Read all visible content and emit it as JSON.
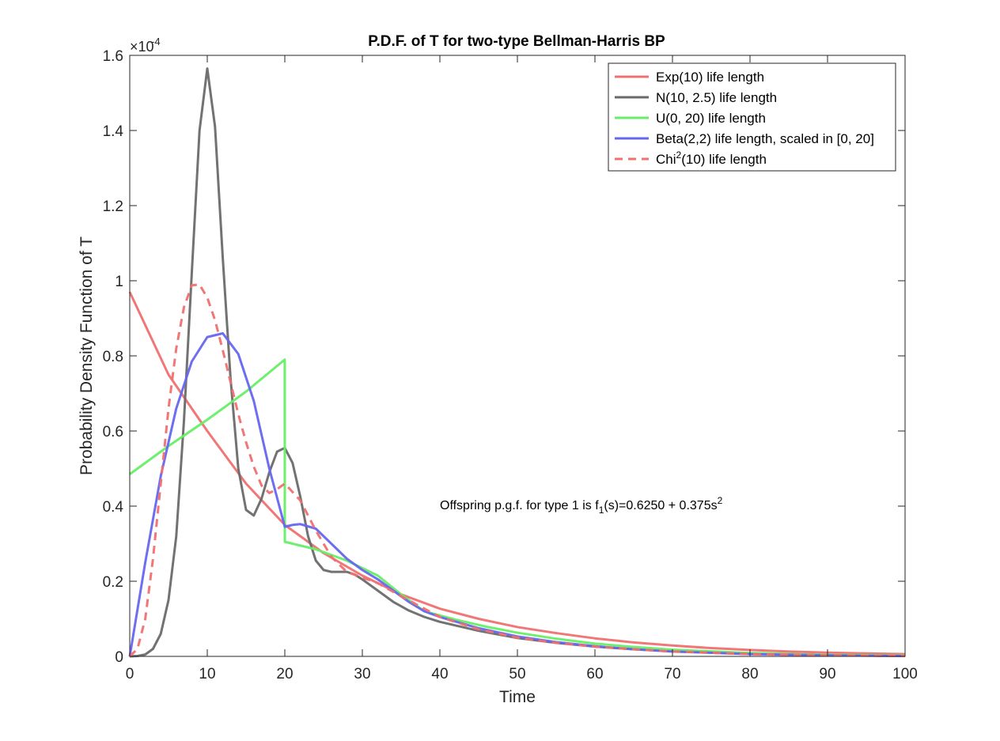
{
  "chart_data": {
    "type": "line",
    "title": "P.D.F. of T for two-type Bellman-Harris BP",
    "xlabel": "Time",
    "ylabel": "Probability Density Function of T",
    "xlim": [
      0,
      100
    ],
    "ylim": [
      0,
      0.00016
    ],
    "x_ticks": [
      "0",
      "10",
      "20",
      "30",
      "40",
      "50",
      "60",
      "70",
      "80",
      "90",
      "100"
    ],
    "y_ticks": [
      "0",
      "0.2",
      "0.4",
      "0.6",
      "0.8",
      "1",
      "1.2",
      "1.4",
      "1.6"
    ],
    "y_exponent": {
      "base": "×10",
      "power": "-4"
    },
    "grid": false,
    "legend_position": "top-right",
    "annotation": {
      "prefix": "Offspring p.g.f. for type 1 is f",
      "subscript": "1",
      "middle": "(s)=0.6250 + 0.375s",
      "superscript": "2"
    },
    "series": [
      {
        "name": "Exp(10) life length",
        "legend_parts": [
          "Exp(10) life length"
        ],
        "color": "#f07070",
        "dash": false,
        "x": [
          0,
          5,
          10,
          15,
          20,
          25,
          30,
          35,
          40,
          45,
          50,
          55,
          60,
          65,
          70,
          75,
          80,
          85,
          90,
          95,
          100
        ],
        "y": [
          9.7e-05,
          7.5e-05,
          6e-05,
          4.6e-05,
          3.5e-05,
          2.75e-05,
          2.15e-05,
          1.65e-05,
          1.27e-05,
          1e-05,
          7.8e-06,
          6.2e-06,
          4.8e-06,
          3.7e-06,
          2.9e-06,
          2.2e-06,
          1.7e-06,
          1.3e-06,
          1e-06,
          8e-07,
          6e-07
        ]
      },
      {
        "name": "N(10, 2.5) life length",
        "legend_parts": [
          "N(10, 2.5) life length"
        ],
        "color": "#6a6a6a",
        "dash": false,
        "x": [
          0,
          1,
          2,
          3,
          4,
          5,
          6,
          7,
          8,
          9,
          10,
          11,
          12,
          13,
          14,
          15,
          16,
          17,
          18,
          19,
          20,
          21,
          22,
          23,
          24,
          25,
          26,
          27,
          28,
          29,
          30,
          32,
          34,
          36,
          38,
          40,
          45,
          50,
          55,
          60,
          65,
          70,
          80,
          90,
          100
        ],
        "y": [
          0,
          1e-07,
          5e-07,
          2e-06,
          6e-06,
          1.5e-05,
          3.2e-05,
          6.3e-05,
          0.000102,
          0.00014,
          0.0001565,
          0.000141,
          0.000106,
          7.4e-05,
          5e-05,
          3.9e-05,
          3.75e-05,
          4.2e-05,
          4.9e-05,
          5.45e-05,
          5.55e-05,
          5.15e-05,
          4.25e-05,
          3.2e-05,
          2.55e-05,
          2.3e-05,
          2.25e-05,
          2.25e-05,
          2.25e-05,
          2.18e-05,
          2.05e-05,
          1.75e-05,
          1.45e-05,
          1.22e-05,
          1.05e-05,
          9.2e-06,
          6.8e-06,
          4.9e-06,
          3.6e-06,
          2.6e-06,
          1.9e-06,
          1.4e-06,
          7e-07,
          3e-07,
          1.5e-07
        ]
      },
      {
        "name": "U(0, 20) life length",
        "legend_parts": [
          "U(0, 20) life length"
        ],
        "color": "#66ee66",
        "dash": false,
        "x": [
          0,
          5,
          10,
          15,
          19.99,
          20,
          24,
          28,
          32,
          35,
          38,
          42,
          46,
          50,
          55,
          60,
          65,
          70,
          80,
          90,
          100
        ],
        "y": [
          4.85e-05,
          5.6e-05,
          6.3e-05,
          7.05e-05,
          7.9e-05,
          3.05e-05,
          2.85e-05,
          2.55e-05,
          2.15e-05,
          1.65e-05,
          1.2e-05,
          9.8e-06,
          7.9e-06,
          6.3e-06,
          4.7e-06,
          3.4e-06,
          2.5e-06,
          1.8e-06,
          9e-07,
          4.5e-07,
          2e-07
        ]
      },
      {
        "name": "Beta(2,2) life length, scaled in [0, 20]",
        "legend_parts": [
          "Beta(2,2) life length, scaled in [0, 20]"
        ],
        "color": "#6666f0",
        "dash": false,
        "x": [
          0,
          2,
          4,
          6,
          8,
          10,
          12,
          14,
          16,
          18,
          20,
          21,
          22,
          24,
          26,
          28,
          30,
          32,
          34,
          36,
          38,
          40,
          45,
          50,
          55,
          60,
          65,
          70,
          80,
          90,
          100
        ],
        "y": [
          0,
          2.5e-05,
          4.8e-05,
          6.6e-05,
          7.85e-05,
          8.5e-05,
          8.6e-05,
          8.05e-05,
          6.8e-05,
          5e-05,
          3.45e-05,
          3.5e-05,
          3.52e-05,
          3.4e-05,
          3e-05,
          2.6e-05,
          2.3e-05,
          2.05e-05,
          1.75e-05,
          1.45e-05,
          1.2e-05,
          1.05e-05,
          7.5e-06,
          5.3e-06,
          3.8e-06,
          2.7e-06,
          1.9e-06,
          1.3e-06,
          6e-07,
          3e-07,
          1e-07
        ]
      },
      {
        "name": "Chi2(10) life length",
        "legend_parts": [
          "Chi",
          "2",
          "(10) life length"
        ],
        "color": "#f07070",
        "dash": true,
        "x": [
          0,
          1,
          2,
          3,
          4,
          5,
          6,
          7,
          8,
          9,
          10,
          11,
          12,
          13,
          14,
          15,
          16,
          17,
          18,
          19,
          20,
          22,
          24,
          26,
          28,
          30,
          32,
          35,
          40,
          45,
          50,
          55,
          60,
          65,
          70,
          80,
          90,
          100
        ],
        "y": [
          0,
          2e-06,
          1e-05,
          2.6e-05,
          4.6e-05,
          6.6e-05,
          8.2e-05,
          9.3e-05,
          9.88e-05,
          9.9e-05,
          9.55e-05,
          8.95e-05,
          8.15e-05,
          7.3e-05,
          6.45e-05,
          5.7e-05,
          5.05e-05,
          4.55e-05,
          4.35e-05,
          4.45e-05,
          4.6e-05,
          4.15e-05,
          3.35e-05,
          2.65e-05,
          2.25e-05,
          2.1e-05,
          1.95e-05,
          1.6e-05,
          1.05e-05,
          7.2e-06,
          5e-06,
          3.6e-06,
          2.6e-06,
          1.9e-06,
          1.3e-06,
          6e-07,
          3e-07,
          1e-07
        ]
      }
    ]
  }
}
